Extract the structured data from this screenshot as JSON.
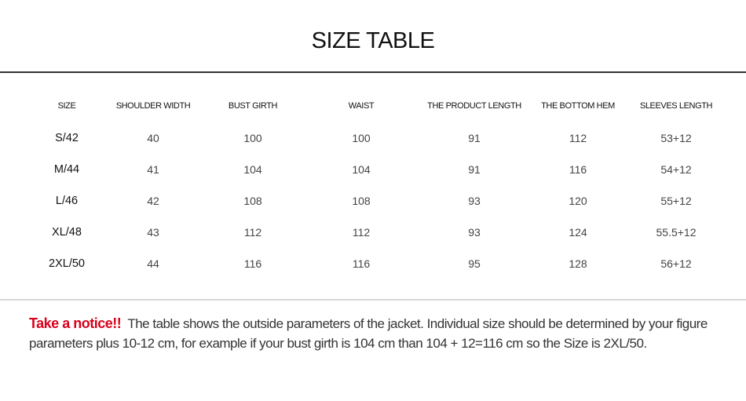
{
  "title": "SIZE TABLE",
  "table": {
    "headers": [
      "SIZE",
      "SHOULDER WIDTH",
      "BUST GIRTH",
      "WAIST",
      "THE PRODUCT LENGTH",
      "THE BOTTOM HEM",
      "SLEEVES LENGTH"
    ],
    "rows": [
      [
        "S/42",
        "40",
        "100",
        "100",
        "91",
        "112",
        "53+12"
      ],
      [
        "M/44",
        "41",
        "104",
        "104",
        "91",
        "116",
        "54+12"
      ],
      [
        "L/46",
        "42",
        "108",
        "108",
        "93",
        "120",
        "55+12"
      ],
      [
        "XL/48",
        "43",
        "112",
        "112",
        "93",
        "124",
        "55.5+12"
      ],
      [
        "2XL/50",
        "44",
        "116",
        "116",
        "95",
        "128",
        "56+12"
      ]
    ]
  },
  "notice": {
    "label": "Take a notice!!",
    "text": "The table shows the outside parameters of the jacket. Individual size should be determined by your figure parameters plus 10-12 cm, for example if your bust girth is 104 cm than 104 + 12=116 cm so the Size is 2XL/50.",
    "label_color": "#d9001b"
  }
}
